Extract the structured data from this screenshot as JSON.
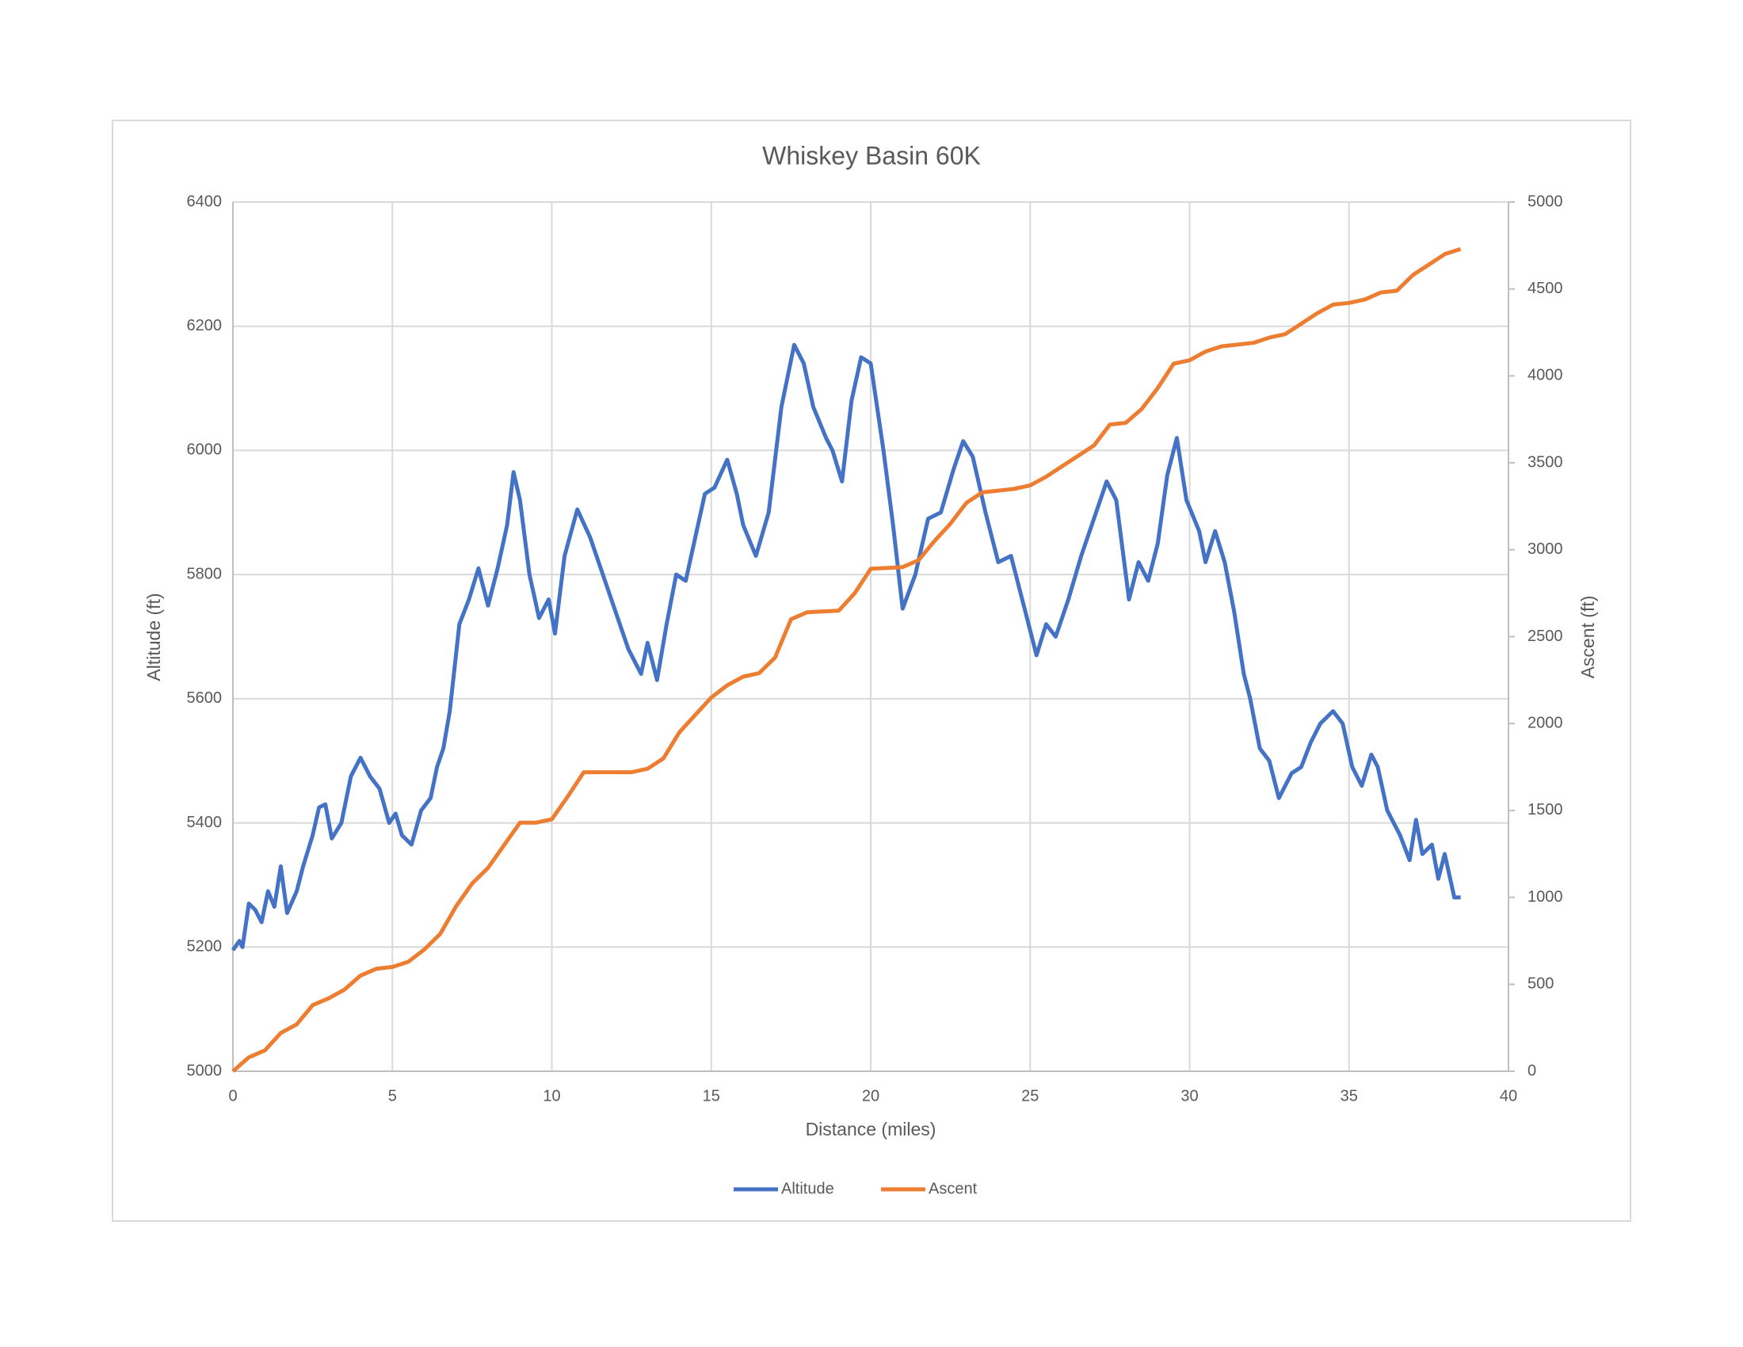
{
  "chart_data": {
    "type": "line",
    "title": "Whiskey Basin 60K",
    "xlabel": "Distance (miles)",
    "ylabel": "Altitude (ft)",
    "y2label": "Ascent (ft)",
    "xlim": [
      0,
      40
    ],
    "xticks": [
      0,
      5,
      10,
      15,
      20,
      25,
      30,
      35,
      40
    ],
    "ylim": [
      5000,
      6400
    ],
    "yticks": [
      5000,
      5200,
      5400,
      5600,
      5800,
      6000,
      6200,
      6400
    ],
    "y2lim": [
      0,
      5000
    ],
    "y2ticks": [
      0,
      500,
      1000,
      1500,
      2000,
      2500,
      3000,
      3500,
      4000,
      4500,
      5000
    ],
    "grid": true,
    "legend": "bottom",
    "series": [
      {
        "name": "Altitude",
        "color": "#4472c4",
        "x": [
          0,
          0.2,
          0.3,
          0.5,
          0.7,
          0.9,
          1.1,
          1.3,
          1.5,
          1.7,
          2.0,
          2.2,
          2.5,
          2.7,
          2.9,
          3.1,
          3.4,
          3.7,
          4.0,
          4.3,
          4.6,
          4.9,
          5.1,
          5.3,
          5.6,
          5.9,
          6.2,
          6.4,
          6.6,
          6.8,
          7.1,
          7.4,
          7.7,
          8.0,
          8.3,
          8.6,
          8.8,
          9.0,
          9.3,
          9.6,
          9.9,
          10.1,
          10.4,
          10.8,
          11.2,
          11.6,
          12.0,
          12.4,
          12.8,
          13.0,
          13.3,
          13.6,
          13.9,
          14.2,
          14.5,
          14.8,
          15.1,
          15.5,
          15.8,
          16.0,
          16.4,
          16.8,
          17.2,
          17.6,
          17.9,
          18.2,
          18.6,
          18.8,
          19.1,
          19.4,
          19.7,
          20.0,
          20.4,
          20.7,
          21.0,
          21.4,
          21.8,
          22.2,
          22.6,
          22.9,
          23.2,
          23.6,
          24.0,
          24.4,
          24.8,
          25.2,
          25.5,
          25.8,
          26.2,
          26.6,
          27.0,
          27.4,
          27.7,
          28.1,
          28.4,
          28.7,
          29.0,
          29.3,
          29.6,
          29.9,
          30.3,
          30.5,
          30.8,
          31.1,
          31.4,
          31.7,
          31.9,
          32.2,
          32.5,
          32.8,
          33.2,
          33.5,
          33.8,
          34.1,
          34.5,
          34.8,
          35.1,
          35.4,
          35.7,
          35.9,
          36.2,
          36.6,
          36.9,
          37.1,
          37.3,
          37.6,
          37.8,
          38.0,
          38.3,
          38.5
        ],
        "values": [
          5195,
          5210,
          5200,
          5270,
          5260,
          5240,
          5290,
          5265,
          5330,
          5255,
          5290,
          5330,
          5380,
          5425,
          5430,
          5375,
          5400,
          5475,
          5505,
          5475,
          5455,
          5400,
          5415,
          5380,
          5365,
          5420,
          5440,
          5490,
          5520,
          5580,
          5720,
          5760,
          5810,
          5750,
          5810,
          5880,
          5965,
          5920,
          5800,
          5730,
          5760,
          5705,
          5830,
          5905,
          5860,
          5800,
          5740,
          5680,
          5640,
          5690,
          5630,
          5720,
          5800,
          5790,
          5860,
          5930,
          5940,
          5985,
          5930,
          5880,
          5830,
          5900,
          6070,
          6170,
          6140,
          6070,
          6020,
          6000,
          5950,
          6080,
          6150,
          6140,
          6000,
          5880,
          5745,
          5800,
          5890,
          5900,
          5970,
          6015,
          5990,
          5900,
          5820,
          5830,
          5750,
          5670,
          5720,
          5700,
          5760,
          5830,
          5890,
          5950,
          5920,
          5760,
          5820,
          5790,
          5850,
          5960,
          6020,
          5920,
          5870,
          5820,
          5870,
          5820,
          5740,
          5640,
          5600,
          5520,
          5500,
          5440,
          5480,
          5490,
          5530,
          5560,
          5580,
          5560,
          5490,
          5460,
          5510,
          5490,
          5420,
          5380,
          5340,
          5405,
          5350,
          5365,
          5310,
          5350,
          5280,
          5280
        ]
      },
      {
        "name": "Ascent",
        "color": "#ed7d31",
        "axis": "y2",
        "x": [
          0,
          0.5,
          1.0,
          1.5,
          2.0,
          2.5,
          3.0,
          3.5,
          4.0,
          4.5,
          5.0,
          5.5,
          6.0,
          6.5,
          7.0,
          7.5,
          8.0,
          8.5,
          9.0,
          9.5,
          10.0,
          10.5,
          11.0,
          12.0,
          12.5,
          13.0,
          13.5,
          14.0,
          14.5,
          15.0,
          15.5,
          16.0,
          16.5,
          17.0,
          17.5,
          18.0,
          19.0,
          19.5,
          20.0,
          21.0,
          21.5,
          22.0,
          22.5,
          23.0,
          23.5,
          24.5,
          25.0,
          25.5,
          26.0,
          27.0,
          27.5,
          28.0,
          28.5,
          29.0,
          29.5,
          30.0,
          30.5,
          31.0,
          32.0,
          32.5,
          33.0,
          33.5,
          34.0,
          34.5,
          35.0,
          35.5,
          36.0,
          36.5,
          37.0,
          37.5,
          38.0,
          38.5
        ],
        "values": [
          0,
          80,
          120,
          220,
          270,
          380,
          420,
          470,
          550,
          590,
          600,
          630,
          700,
          790,
          950,
          1080,
          1170,
          1300,
          1430,
          1430,
          1450,
          1580,
          1720,
          1720,
          1720,
          1740,
          1800,
          1950,
          2050,
          2150,
          2220,
          2270,
          2290,
          2380,
          2600,
          2640,
          2650,
          2750,
          2890,
          2900,
          2940,
          3050,
          3150,
          3270,
          3330,
          3350,
          3370,
          3420,
          3480,
          3600,
          3720,
          3730,
          3810,
          3930,
          4070,
          4090,
          4140,
          4170,
          4190,
          4220,
          4240,
          4300,
          4360,
          4410,
          4420,
          4440,
          4480,
          4490,
          4580,
          4640,
          4700,
          4730
        ]
      }
    ]
  }
}
